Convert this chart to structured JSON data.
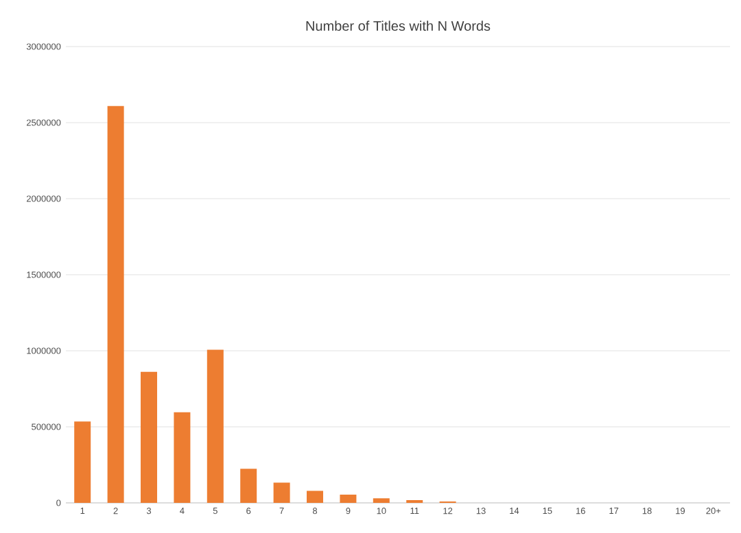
{
  "chart_data": {
    "type": "bar",
    "title": "Number of Titles with N Words",
    "categories": [
      "1",
      "2",
      "3",
      "4",
      "5",
      "6",
      "7",
      "8",
      "9",
      "10",
      "11",
      "12",
      "13",
      "14",
      "15",
      "16",
      "17",
      "18",
      "19",
      "20+"
    ],
    "values": [
      535000,
      2610000,
      862000,
      596000,
      1007000,
      224000,
      133000,
      79000,
      54000,
      30000,
      18000,
      9000,
      0,
      0,
      0,
      0,
      0,
      0,
      0,
      0
    ],
    "color": "#ed7d31",
    "ylim": [
      0,
      3000000
    ],
    "yticks": [
      0,
      500000,
      1000000,
      1500000,
      2000000,
      2500000,
      3000000
    ],
    "grid": "y"
  }
}
